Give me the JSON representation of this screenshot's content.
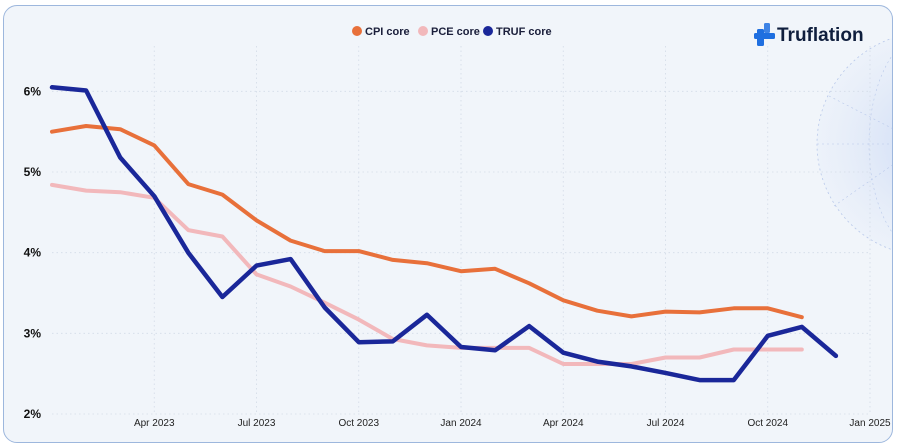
{
  "brand": {
    "name": "Truflation",
    "color": "#1f6fe0"
  },
  "chart_data": {
    "type": "line",
    "y_unit": "%",
    "ylim": [
      2,
      6.5
    ],
    "y_ticks": [
      "6%",
      "5%",
      "4%",
      "3%",
      "2%"
    ],
    "y_tick_values": [
      6,
      5,
      4,
      3,
      2
    ],
    "x": [
      "2023-01",
      "2023-02",
      "2023-03",
      "2023-04",
      "2023-05",
      "2023-06",
      "2023-07",
      "2023-08",
      "2023-09",
      "2023-10",
      "2023-11",
      "2023-12",
      "2024-01",
      "2024-02",
      "2024-03",
      "2024-04",
      "2024-05",
      "2024-06",
      "2024-07",
      "2024-08",
      "2024-09",
      "2024-10",
      "2024-11",
      "2024-12",
      "2025-01"
    ],
    "x_ticks": [
      "Apr 2023",
      "Jul 2023",
      "Oct 2023",
      "Jan 2024",
      "Apr 2024",
      "Jul 2024",
      "Oct 2024",
      "Jan 2025"
    ],
    "x_tick_positions": [
      "2023-04",
      "2023-07",
      "2023-10",
      "2024-01",
      "2024-04",
      "2024-07",
      "2024-10",
      "2025-01"
    ],
    "grid": true,
    "legend": "top-center",
    "series": [
      {
        "name": "CPI core",
        "color": "#e8703a",
        "values": [
          5.5,
          5.57,
          5.53,
          5.33,
          4.85,
          4.72,
          4.4,
          4.15,
          4.02,
          4.02,
          3.91,
          3.87,
          3.77,
          3.8,
          3.62,
          3.41,
          3.28,
          3.21,
          3.27,
          3.26,
          3.31,
          3.31,
          3.2,
          null,
          null
        ]
      },
      {
        "name": "PCE core",
        "color": "#f2b8bb",
        "values": [
          4.84,
          4.77,
          4.75,
          4.68,
          4.28,
          4.2,
          3.73,
          3.58,
          3.38,
          3.17,
          2.93,
          2.85,
          2.82,
          2.82,
          2.82,
          2.62,
          2.62,
          2.62,
          2.7,
          2.7,
          2.8,
          2.8,
          2.8,
          null,
          null
        ]
      },
      {
        "name": "TRUF core",
        "color": "#1a2799",
        "values": [
          6.05,
          6.01,
          5.18,
          4.7,
          4.0,
          3.45,
          3.84,
          3.92,
          3.32,
          2.89,
          2.9,
          3.23,
          2.83,
          2.79,
          3.09,
          2.76,
          2.65,
          2.59,
          2.51,
          2.42,
          2.42,
          2.97,
          3.08,
          2.72,
          null
        ]
      }
    ]
  }
}
